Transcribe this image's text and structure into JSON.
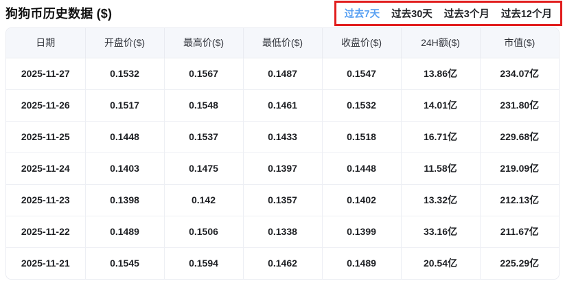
{
  "page": {
    "title": "狗狗币历史数据 ($)"
  },
  "time_range_tabs": [
    {
      "label": "过去7天",
      "active": true
    },
    {
      "label": "过去30天",
      "active": false
    },
    {
      "label": "过去3个月",
      "active": false
    },
    {
      "label": "过去12个月",
      "active": false
    }
  ],
  "colors": {
    "active_tab": "#58a0f2",
    "annotation_box_border": "#e11d1d",
    "header_background": "#f5f7fb",
    "grid_border": "#e9ebf1"
  },
  "table": {
    "columns": [
      "日期",
      "开盘价($)",
      "最高价($)",
      "最低价($)",
      "收盘价($)",
      "24H额($)",
      "市值($)"
    ],
    "rows": [
      [
        "2025-11-27",
        "0.1532",
        "0.1567",
        "0.1487",
        "0.1547",
        "13.86亿",
        "234.07亿"
      ],
      [
        "2025-11-26",
        "0.1517",
        "0.1548",
        "0.1461",
        "0.1532",
        "14.01亿",
        "231.80亿"
      ],
      [
        "2025-11-25",
        "0.1448",
        "0.1537",
        "0.1433",
        "0.1518",
        "16.71亿",
        "229.68亿"
      ],
      [
        "2025-11-24",
        "0.1403",
        "0.1475",
        "0.1397",
        "0.1448",
        "11.58亿",
        "219.09亿"
      ],
      [
        "2025-11-23",
        "0.1398",
        "0.142",
        "0.1357",
        "0.1402",
        "13.32亿",
        "212.13亿"
      ],
      [
        "2025-11-22",
        "0.1489",
        "0.1506",
        "0.1338",
        "0.1399",
        "33.16亿",
        "211.67亿"
      ],
      [
        "2025-11-21",
        "0.1545",
        "0.1594",
        "0.1462",
        "0.1489",
        "20.54亿",
        "225.29亿"
      ]
    ]
  }
}
